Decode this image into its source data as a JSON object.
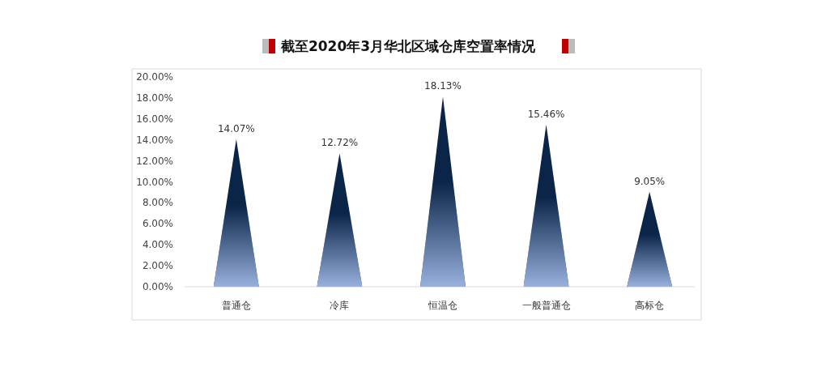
{
  "chart_data": {
    "type": "bar",
    "title": "截至2020年3月华北区域仓库空置率情况",
    "categories": [
      "普通仓",
      "冷库",
      "恒温仓",
      "一般普通仓",
      "高标仓"
    ],
    "values": [
      14.07,
      12.72,
      18.13,
      15.46,
      9.05
    ],
    "color": "#0b2548",
    "value_labels": [
      "14.07%",
      "12.72%",
      "18.13%",
      "15.46%",
      "9.05%"
    ],
    "ylim": [
      0,
      20
    ],
    "yticks": [
      {
        "value": 0,
        "label": "0.00%"
      },
      {
        "value": 2,
        "label": "2.00%"
      },
      {
        "value": 4,
        "label": "4.00%"
      },
      {
        "value": 6,
        "label": "6.00%"
      },
      {
        "value": 8,
        "label": "8.00%"
      },
      {
        "value": 10,
        "label": "10.00%"
      },
      {
        "value": 12,
        "label": "12.00%"
      },
      {
        "value": 14,
        "label": "14.00%"
      },
      {
        "value": 16,
        "label": "16.00%"
      },
      {
        "value": 18,
        "label": "18.00%"
      },
      {
        "value": 20,
        "label": "20.00%"
      }
    ]
  }
}
